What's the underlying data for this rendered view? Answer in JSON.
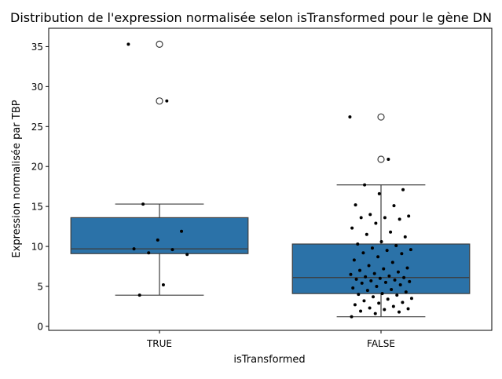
{
  "chart_data": {
    "type": "box",
    "title": "Distribution de l'expression normalisée selon isTransformed pour le gène DN",
    "xlabel": "isTransformed",
    "ylabel": "Expression normalisée par TBP",
    "categories": [
      "TRUE",
      "FALSE"
    ],
    "ylim": [
      -0.5,
      37.3
    ],
    "yticks": [
      0,
      5,
      10,
      15,
      20,
      25,
      30,
      35
    ],
    "box_color": "#2b72a8",
    "grid": false,
    "boxes": [
      {
        "category": "TRUE",
        "whisker_low": 3.9,
        "q1": 9.1,
        "median": 9.7,
        "q3": 13.6,
        "whisker_high": 15.3,
        "outliers": [
          28.2,
          35.3
        ],
        "points": [
          35.3,
          28.2,
          15.3,
          11.9,
          10.8,
          9.7,
          9.6,
          9.2,
          9.0,
          5.2,
          3.9
        ]
      },
      {
        "category": "FALSE",
        "whisker_low": 1.2,
        "q1": 4.1,
        "median": 6.1,
        "q3": 10.3,
        "whisker_high": 17.7,
        "outliers": [
          20.9,
          26.2
        ],
        "points": [
          26.2,
          20.9,
          17.7,
          17.1,
          16.6,
          15.2,
          15.1,
          14.0,
          13.8,
          13.6,
          13.6,
          13.4,
          12.9,
          12.3,
          11.8,
          11.5,
          11.2,
          10.6,
          10.3,
          10.1,
          9.8,
          9.6,
          9.5,
          9.2,
          9.1,
          8.7,
          8.3,
          8.0,
          7.6,
          7.3,
          7.2,
          7.0,
          6.8,
          6.6,
          6.5,
          6.3,
          6.2,
          6.1,
          6.0,
          5.9,
          5.8,
          5.7,
          5.6,
          5.5,
          5.4,
          5.2,
          5.0,
          4.8,
          4.6,
          4.5,
          4.3,
          4.1,
          4.0,
          3.9,
          3.7,
          3.5,
          3.4,
          3.2,
          3.0,
          2.9,
          2.7,
          2.5,
          2.3,
          2.2,
          2.1,
          1.9,
          1.8,
          1.6,
          1.2
        ]
      }
    ]
  }
}
